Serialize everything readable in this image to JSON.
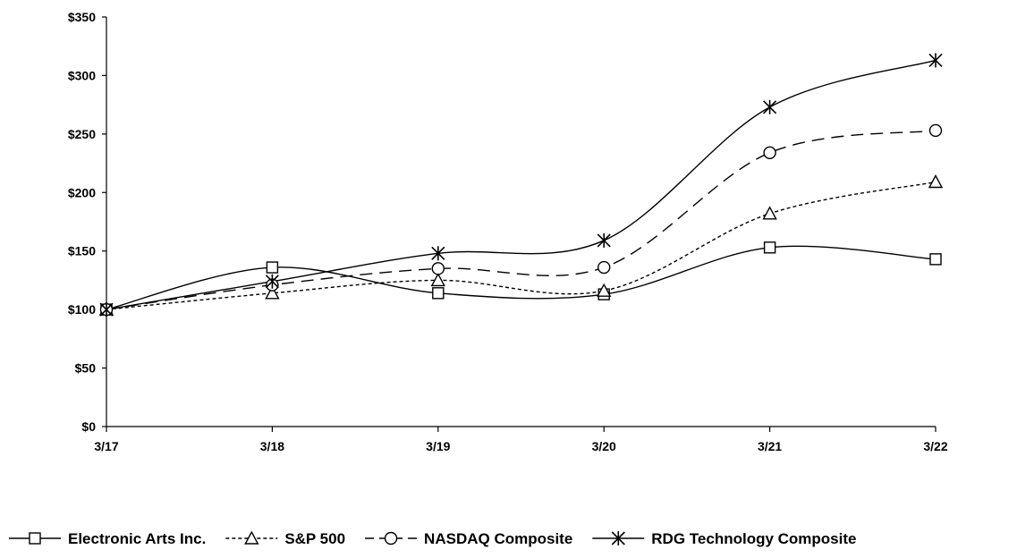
{
  "chart_data": {
    "type": "line",
    "categories": [
      "3/17",
      "3/18",
      "3/19",
      "3/20",
      "3/21",
      "3/22"
    ],
    "ylim": [
      0,
      350
    ],
    "yticks": [
      0,
      50,
      100,
      150,
      200,
      250,
      300,
      350
    ],
    "ytick_labels": [
      "$0",
      "$50",
      "$100",
      "$150",
      "$200",
      "$250",
      "$300",
      "$350"
    ],
    "grid": false,
    "legend_position": "bottom",
    "series": [
      {
        "name": "Electronic Arts Inc.",
        "marker": "square",
        "dash": "solid",
        "values": [
          100,
          136,
          114,
          113,
          153,
          143
        ]
      },
      {
        "name": "S&P 500",
        "marker": "triangle",
        "dash": "dotted",
        "values": [
          100,
          114,
          125,
          116,
          182,
          209
        ]
      },
      {
        "name": "NASDAQ Composite",
        "marker": "circle",
        "dash": "dashed",
        "values": [
          100,
          121,
          135,
          136,
          234,
          253
        ]
      },
      {
        "name": "RDG Technology Composite",
        "marker": "star",
        "dash": "solid",
        "values": [
          100,
          124,
          148,
          159,
          273,
          313
        ]
      }
    ]
  }
}
